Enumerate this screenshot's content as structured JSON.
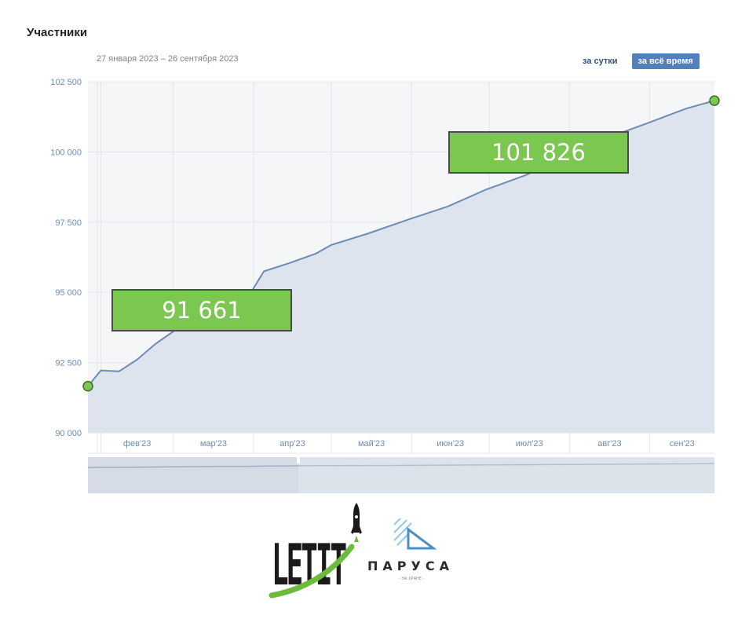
{
  "header": {
    "title": "Участники",
    "date_range": "27 января 2023 – 26 сентября 2023"
  },
  "period_buttons": {
    "day": "за сутки",
    "all_time": "за всё время"
  },
  "callouts": {
    "first": "91 661",
    "last": "101 826"
  },
  "logos": {
    "letit": "LETIT",
    "parusa": "ПАРУСА",
    "parusa_tagline": "- НА ХРАНЕ -"
  },
  "colors": {
    "line": "#6d8cb5",
    "area": "#dde4ed",
    "callout": "#7cc750",
    "button": "#5181b8"
  },
  "chart_data": {
    "type": "area",
    "title": "Участники",
    "y_tick_labels": [
      "90 000",
      "92 500",
      "95 000",
      "97 500",
      "100 000",
      "102 500"
    ],
    "y_ticks": [
      90000,
      92500,
      95000,
      97500,
      100000,
      102500
    ],
    "ylim": [
      90000,
      102500
    ],
    "x_tick_labels": [
      "фев'23",
      "мар'23",
      "апр'23",
      "май'23",
      "июн'23",
      "июл'23",
      "авг'23",
      "сен'23"
    ],
    "x_range": [
      "2023-01-27",
      "2023-09-26"
    ],
    "grid": true,
    "series": [
      {
        "x": [
          "2023-01-27",
          "2023-02-01",
          "2023-02-08",
          "2023-02-15",
          "2023-02-22",
          "2023-03-01",
          "2023-03-10",
          "2023-03-20",
          "2023-03-25",
          "2023-03-31",
          "2023-04-05",
          "2023-04-15",
          "2023-04-25",
          "2023-05-01",
          "2023-05-15",
          "2023-05-31",
          "2023-06-15",
          "2023-06-30",
          "2023-07-15",
          "2023-07-31",
          "2023-08-15",
          "2023-08-31",
          "2023-09-15",
          "2023-09-26"
        ],
        "values": [
          91661,
          92220,
          92190,
          92610,
          93160,
          93610,
          94100,
          94480,
          94630,
          95000,
          95750,
          96050,
          96380,
          96690,
          97090,
          97600,
          98060,
          98670,
          99170,
          99860,
          100480,
          101020,
          101540,
          101826
        ]
      }
    ],
    "annotations": [
      "91 661",
      "101 826"
    ]
  }
}
